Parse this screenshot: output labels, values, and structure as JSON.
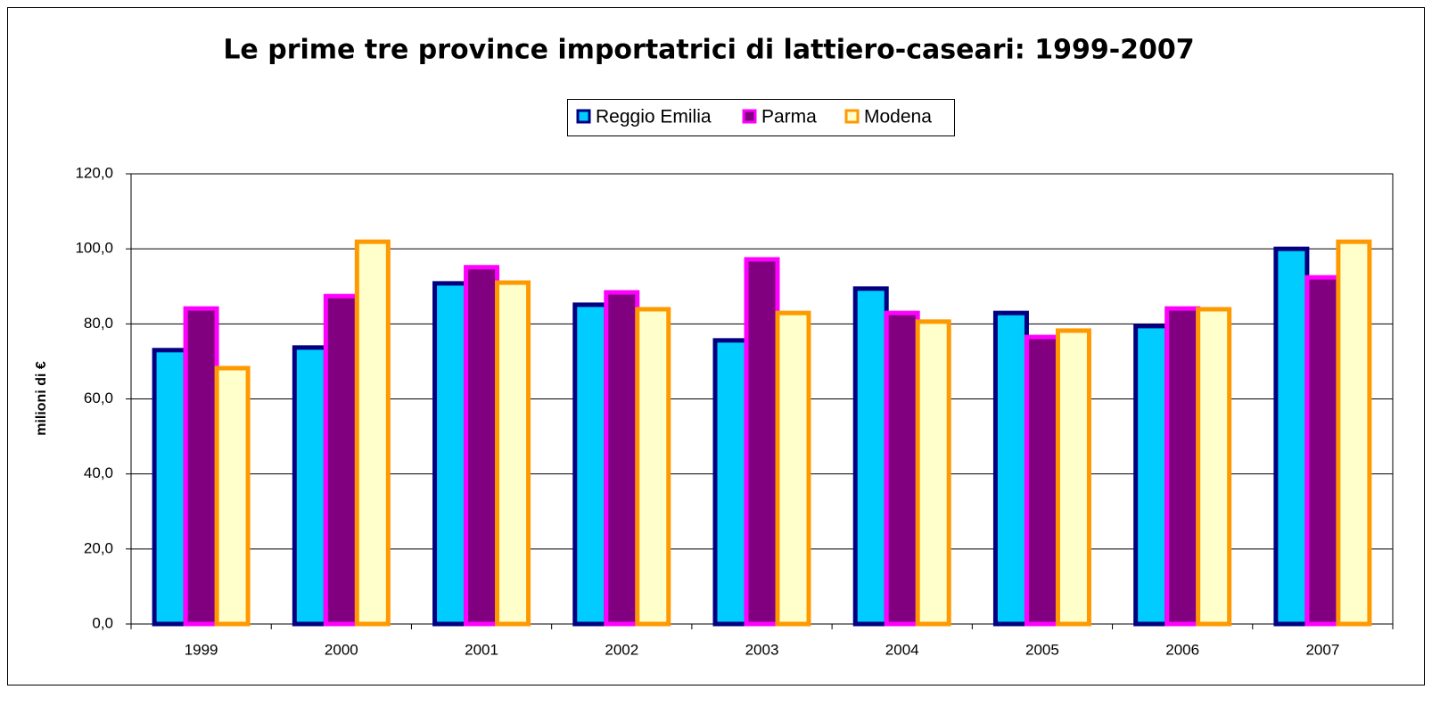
{
  "chart_data": {
    "type": "bar",
    "title": "Le prime tre province importatrici di lattiero-caseari: 1999-2007",
    "y_label": "milioni di €",
    "categories": [
      "1999",
      "2000",
      "2001",
      "2002",
      "2003",
      "2004",
      "2005",
      "2006",
      "2007"
    ],
    "series": [
      {
        "name": "Reggio Emilia",
        "color": "#00ccff",
        "edgecolor": "#000080",
        "values": [
          73.0,
          73.7,
          90.8,
          85.1,
          75.6,
          89.4,
          82.9,
          79.4,
          100.0
        ]
      },
      {
        "name": "Parma",
        "color": "#800080",
        "edgecolor": "#ff00ff",
        "values": [
          84.1,
          87.4,
          95.1,
          88.4,
          97.2,
          82.9,
          76.5,
          84.1,
          92.4
        ]
      },
      {
        "name": "Modena",
        "color": "#ffffcc",
        "edgecolor": "#ff9900",
        "values": [
          68.2,
          101.9,
          91.0,
          83.9,
          82.9,
          80.6,
          78.2,
          83.9,
          101.9
        ]
      }
    ],
    "ylim": [
      0,
      120
    ],
    "yticks": [
      {
        "value": 0,
        "label": "0,0"
      },
      {
        "value": 20,
        "label": "20,0"
      },
      {
        "value": 40,
        "label": "40,0"
      },
      {
        "value": 60,
        "label": "60,0"
      },
      {
        "value": 80,
        "label": "80,0"
      },
      {
        "value": 100,
        "label": "100,0"
      },
      {
        "value": 120,
        "label": "120,0"
      }
    ],
    "grid": true,
    "legend": "top"
  }
}
